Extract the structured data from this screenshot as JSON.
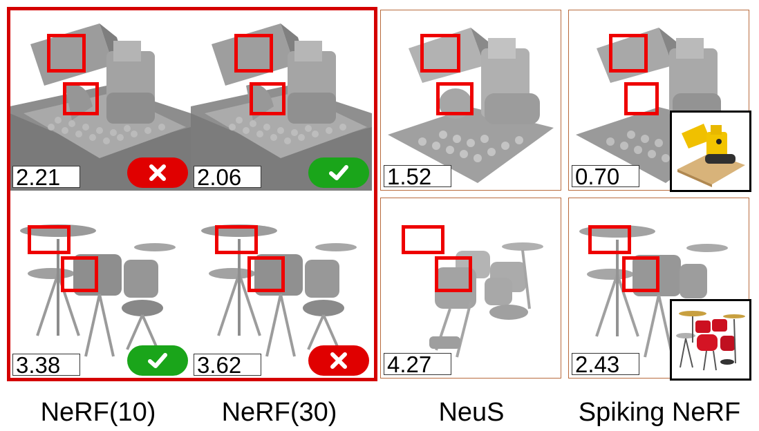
{
  "columns": [
    {
      "name": "NeRF(10)"
    },
    {
      "name": "NeRF(30)"
    },
    {
      "name": "NeuS"
    },
    {
      "name": "Spiking NeRF"
    }
  ],
  "rows": [
    {
      "scene": "lego",
      "scores": [
        "2.21",
        "2.06",
        "1.52",
        "0.70"
      ],
      "marks": [
        "cross",
        "check",
        null,
        null
      ]
    },
    {
      "scene": "drums",
      "scores": [
        "3.38",
        "3.62",
        "4.27",
        "2.43"
      ],
      "marks": [
        "check",
        "cross",
        null,
        null
      ]
    }
  ],
  "colors": {
    "highlight_box": "#ee0000",
    "group_frame": "#d40000",
    "cross_badge": "#e00000",
    "check_badge": "#1aa51a",
    "mesh_gray": "#9a9a9a"
  },
  "icons": {
    "cross": "x-mark-icon",
    "check": "check-mark-icon"
  }
}
